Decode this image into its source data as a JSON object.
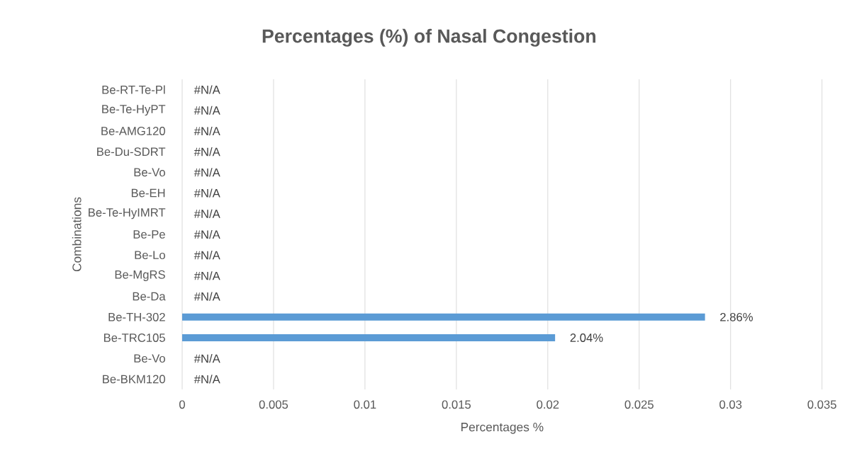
{
  "chart_data": {
    "type": "bar",
    "orientation": "horizontal",
    "title": "Percentages (%) of Nasal Congestion",
    "xlabel": "Percentages %",
    "ylabel": "Combinations",
    "categories": [
      "Be-RT-Te-Pl",
      "Be-Te-HyPT",
      "Be-AMG120",
      "Be-Du-SDRT",
      "Be-Vo",
      "Be-EH",
      "Be-Te-HyIMRT",
      "Be-Pe",
      "Be-Lo",
      "Be-MgRS",
      "Be-Da",
      "Be-TH-302",
      "Be-TRC105",
      "Be-Vo",
      "Be-BKM120"
    ],
    "values": [
      null,
      null,
      null,
      null,
      null,
      null,
      null,
      null,
      null,
      null,
      null,
      0.0286,
      0.0204,
      null,
      null
    ],
    "value_labels": [
      "#N/A",
      "#N/A",
      "#N/A",
      "#N/A",
      "#N/A",
      "#N/A",
      "#N/A",
      "#N/A",
      "#N/A",
      "#N/A",
      "#N/A",
      "2.86%",
      "2.04%",
      "#N/A",
      "#N/A"
    ],
    "color": "#5b9bd5",
    "xlim": [
      0,
      0.035
    ],
    "xticks": [
      0,
      0.005,
      0.01,
      0.015,
      0.02,
      0.025,
      0.03,
      0.035
    ],
    "grid": "x"
  }
}
